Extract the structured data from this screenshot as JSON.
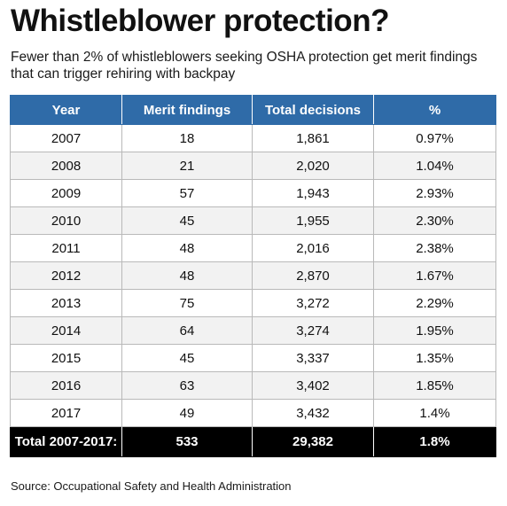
{
  "title": "Whistleblower protection?",
  "subtitle": "Fewer than 2% of whistleblowers seeking OSHA protection get merit findings that can trigger rehiring with backpay",
  "source": "Source: Occupational Safety and Health Administration",
  "colors": {
    "header_bg": "#2f6ba8",
    "total_bg": "#000000",
    "stripe_bg": "#f2f2f2"
  },
  "chart_data": {
    "type": "table",
    "columns": [
      "Year",
      "Merit findings",
      "Total decisions",
      "%"
    ],
    "rows": [
      [
        "2007",
        "18",
        "1,861",
        "0.97%"
      ],
      [
        "2008",
        "21",
        "2,020",
        "1.04%"
      ],
      [
        "2009",
        "57",
        "1,943",
        "2.93%"
      ],
      [
        "2010",
        "45",
        "1,955",
        "2.30%"
      ],
      [
        "2011",
        "48",
        "2,016",
        "2.38%"
      ],
      [
        "2012",
        "48",
        "2,870",
        "1.67%"
      ],
      [
        "2013",
        "75",
        "3,272",
        "2.29%"
      ],
      [
        "2014",
        "64",
        "3,274",
        "1.95%"
      ],
      [
        "2015",
        "45",
        "3,337",
        "1.35%"
      ],
      [
        "2016",
        "63",
        "3,402",
        "1.85%"
      ],
      [
        "2017",
        "49",
        "3,432",
        "1.4%"
      ]
    ],
    "total": [
      "Total 2007-2017:",
      "533",
      "29,382",
      "1.8%"
    ]
  }
}
